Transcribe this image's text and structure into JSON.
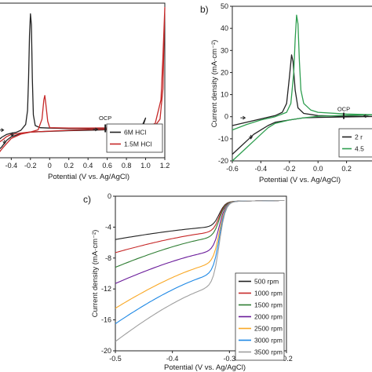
{
  "chart_data": [
    {
      "panel_label": "",
      "type": "line",
      "xlabel": "Potential (V vs. Ag/AgCl)",
      "ylabel": "",
      "xlim": [
        -0.55,
        1.2
      ],
      "ylim": [
        -12,
        60
      ],
      "xticks": [
        -0.4,
        -0.2,
        0,
        0.2,
        0.4,
        0.6,
        0.8,
        1,
        1.2
      ],
      "xtick_labels": [
        "-0.4",
        "-0.2",
        "0",
        "0.2",
        "0.4",
        "0.6",
        "0.8",
        "1.0",
        "1.2"
      ],
      "legend_position": "bottom-right",
      "annotations": [
        {
          "text": "OCP",
          "x": 0.58,
          "y": 5.5
        }
      ],
      "series": [
        {
          "name": "6M HCl",
          "color": "#222222",
          "points": [
            [
              -0.55,
              -4.5
            ],
            [
              -0.5,
              -2.5
            ],
            [
              -0.45,
              -1.2
            ],
            [
              -0.4,
              -0.6
            ],
            [
              -0.35,
              -0.2
            ],
            [
              -0.3,
              0.8
            ],
            [
              -0.25,
              3.5
            ],
            [
              -0.23,
              10
            ],
            [
              -0.22,
              25
            ],
            [
              -0.21,
              45
            ],
            [
              -0.2,
              55
            ],
            [
              -0.19,
              50
            ],
            [
              -0.18,
              25
            ],
            [
              -0.17,
              8
            ],
            [
              -0.15,
              3
            ],
            [
              -0.1,
              2
            ],
            [
              0,
              1.8
            ],
            [
              0.2,
              1.6
            ],
            [
              0.4,
              1.6
            ],
            [
              0.6,
              1.7
            ],
            [
              0.8,
              1.8
            ],
            [
              0.95,
              2.2
            ],
            [
              0.98,
              3.8
            ],
            [
              1.0,
              6.5
            ],
            [
              0.95,
              1.6
            ],
            [
              0.8,
              1.2
            ],
            [
              0.6,
              1.0
            ],
            [
              0.4,
              0.8
            ],
            [
              0.2,
              0.6
            ],
            [
              0,
              0.3
            ],
            [
              -0.2,
              0
            ],
            [
              -0.3,
              -0.8
            ],
            [
              -0.4,
              -2.2
            ],
            [
              -0.45,
              -4
            ],
            [
              -0.5,
              -7
            ],
            [
              -0.55,
              -9
            ]
          ]
        },
        {
          "name": "1.5M HCl",
          "color": "#c62828",
          "points": [
            [
              -0.55,
              -5.5
            ],
            [
              -0.5,
              -4
            ],
            [
              -0.45,
              -2.2
            ],
            [
              -0.4,
              -1.2
            ],
            [
              -0.3,
              -0.5
            ],
            [
              -0.2,
              0
            ],
            [
              -0.12,
              1
            ],
            [
              -0.08,
              6
            ],
            [
              -0.06,
              15
            ],
            [
              -0.05,
              17
            ],
            [
              -0.04,
              13
            ],
            [
              -0.02,
              5
            ],
            [
              0,
              2
            ],
            [
              0.2,
              1.8
            ],
            [
              0.4,
              1.8
            ],
            [
              0.6,
              1.9
            ],
            [
              0.8,
              2
            ],
            [
              1.0,
              2.3
            ],
            [
              1.1,
              3
            ],
            [
              1.15,
              6
            ],
            [
              1.18,
              20
            ],
            [
              1.19,
              40
            ],
            [
              1.2,
              58
            ],
            [
              1.18,
              35
            ],
            [
              1.16,
              15
            ],
            [
              1.1,
              4
            ],
            [
              1.0,
              2
            ],
            [
              0.8,
              1.6
            ],
            [
              0.6,
              1.3
            ],
            [
              0.4,
              1.1
            ],
            [
              0.2,
              0.8
            ],
            [
              0,
              0.4
            ],
            [
              -0.2,
              -0.1
            ],
            [
              -0.3,
              -1
            ],
            [
              -0.4,
              -3
            ],
            [
              -0.45,
              -5.5
            ],
            [
              -0.5,
              -8
            ],
            [
              -0.55,
              -11
            ]
          ]
        }
      ]
    },
    {
      "panel_label": "b)",
      "type": "line",
      "xlabel": "Potential (V vs. Ag/AgCl)",
      "ylabel": "Current density (mA·cm⁻²)",
      "xlim": [
        -0.6,
        0.4
      ],
      "ylim": [
        -20,
        50
      ],
      "xticks": [
        -0.6,
        -0.4,
        -0.2,
        0,
        0.2
      ],
      "xtick_labels": [
        "-0.6",
        "-0.4",
        "-0.2",
        "0.0",
        "0.2"
      ],
      "yticks": [
        -20,
        -10,
        0,
        10,
        20,
        30,
        40,
        50
      ],
      "ytick_labels": [
        "-20",
        "-10",
        "0",
        "10",
        "20",
        "30",
        "40",
        "50"
      ],
      "legend_position": "bottom-right",
      "annotations": [
        {
          "text": "OCP",
          "x": 0.18,
          "y": 2.5
        }
      ],
      "series": [
        {
          "name": "2 r",
          "color": "#222222",
          "points": [
            [
              -0.6,
              -4
            ],
            [
              -0.5,
              -2.5
            ],
            [
              -0.4,
              -1
            ],
            [
              -0.3,
              0.5
            ],
            [
              -0.25,
              2
            ],
            [
              -0.22,
              6
            ],
            [
              -0.2,
              18
            ],
            [
              -0.185,
              28
            ],
            [
              -0.175,
              25
            ],
            [
              -0.16,
              12
            ],
            [
              -0.14,
              4
            ],
            [
              -0.1,
              1.5
            ],
            [
              0,
              0.5
            ],
            [
              0.2,
              0.2
            ],
            [
              0.4,
              0.1
            ],
            [
              0.2,
              -0.1
            ],
            [
              0,
              -0.3
            ],
            [
              -0.1,
              -0.5
            ],
            [
              -0.2,
              -1.5
            ],
            [
              -0.3,
              -2.5
            ],
            [
              -0.35,
              -4
            ],
            [
              -0.4,
              -6
            ],
            [
              -0.45,
              -8
            ],
            [
              -0.5,
              -11
            ],
            [
              -0.55,
              -14
            ],
            [
              -0.6,
              -17
            ]
          ]
        },
        {
          "name": "4.5",
          "color": "#2e9e4f",
          "points": [
            [
              -0.6,
              -6
            ],
            [
              -0.5,
              -3.5
            ],
            [
              -0.4,
              -1.5
            ],
            [
              -0.3,
              0
            ],
            [
              -0.22,
              2
            ],
            [
              -0.19,
              6
            ],
            [
              -0.17,
              20
            ],
            [
              -0.16,
              35
            ],
            [
              -0.15,
              46
            ],
            [
              -0.14,
              42
            ],
            [
              -0.13,
              25
            ],
            [
              -0.12,
              12
            ],
            [
              -0.1,
              6
            ],
            [
              -0.05,
              3
            ],
            [
              0,
              2
            ],
            [
              0.2,
              1.2
            ],
            [
              0.4,
              0.9
            ],
            [
              0.2,
              0.6
            ],
            [
              0,
              0.2
            ],
            [
              -0.1,
              -0.5
            ],
            [
              -0.2,
              -1.5
            ],
            [
              -0.3,
              -3
            ],
            [
              -0.35,
              -5
            ],
            [
              -0.4,
              -8
            ],
            [
              -0.45,
              -11
            ],
            [
              -0.5,
              -14
            ],
            [
              -0.55,
              -17
            ],
            [
              -0.6,
              -20
            ]
          ]
        }
      ]
    },
    {
      "panel_label": "c)",
      "type": "line",
      "xlabel": "Potential (V vs. Ag/AgCl)",
      "ylabel": "Current density (mA·cm⁻²)",
      "xlim": [
        -0.5,
        -0.2
      ],
      "ylim": [
        -20,
        0
      ],
      "xticks": [
        -0.5,
        -0.4,
        -0.3,
        -0.2
      ],
      "xtick_labels": [
        "-0.5",
        "-0.4",
        "-0.3",
        "-0.2"
      ],
      "yticks": [
        0,
        -4,
        -8,
        -12,
        -16,
        -20
      ],
      "ytick_labels": [
        "0",
        "-4",
        "-8",
        "-12",
        "-16",
        "-20"
      ],
      "legend_position": "bottom-right",
      "series": [
        {
          "name": "500 rpm",
          "color": "#222222",
          "limit": -4.0
        },
        {
          "name": "1000 rpm",
          "color": "#c62828",
          "limit": -4.7
        },
        {
          "name": "1500 rpm",
          "color": "#2e7d32",
          "limit": -5.4
        },
        {
          "name": "2000 rpm",
          "color": "#6a1b9a",
          "limit": -7.2
        },
        {
          "name": "2500 rpm",
          "color": "#f9a825",
          "limit": -8.8
        },
        {
          "name": "3000 rpm",
          "color": "#1e88e5",
          "limit": -10.2
        },
        {
          "name": "3500 rpm",
          "color": "#9e9e9e",
          "limit": -11.8
        }
      ],
      "endpoints_at_xmin": [
        -5.6,
        -7.3,
        -9.2,
        -11.3,
        -14.5,
        -16.5,
        -18.8
      ]
    }
  ]
}
